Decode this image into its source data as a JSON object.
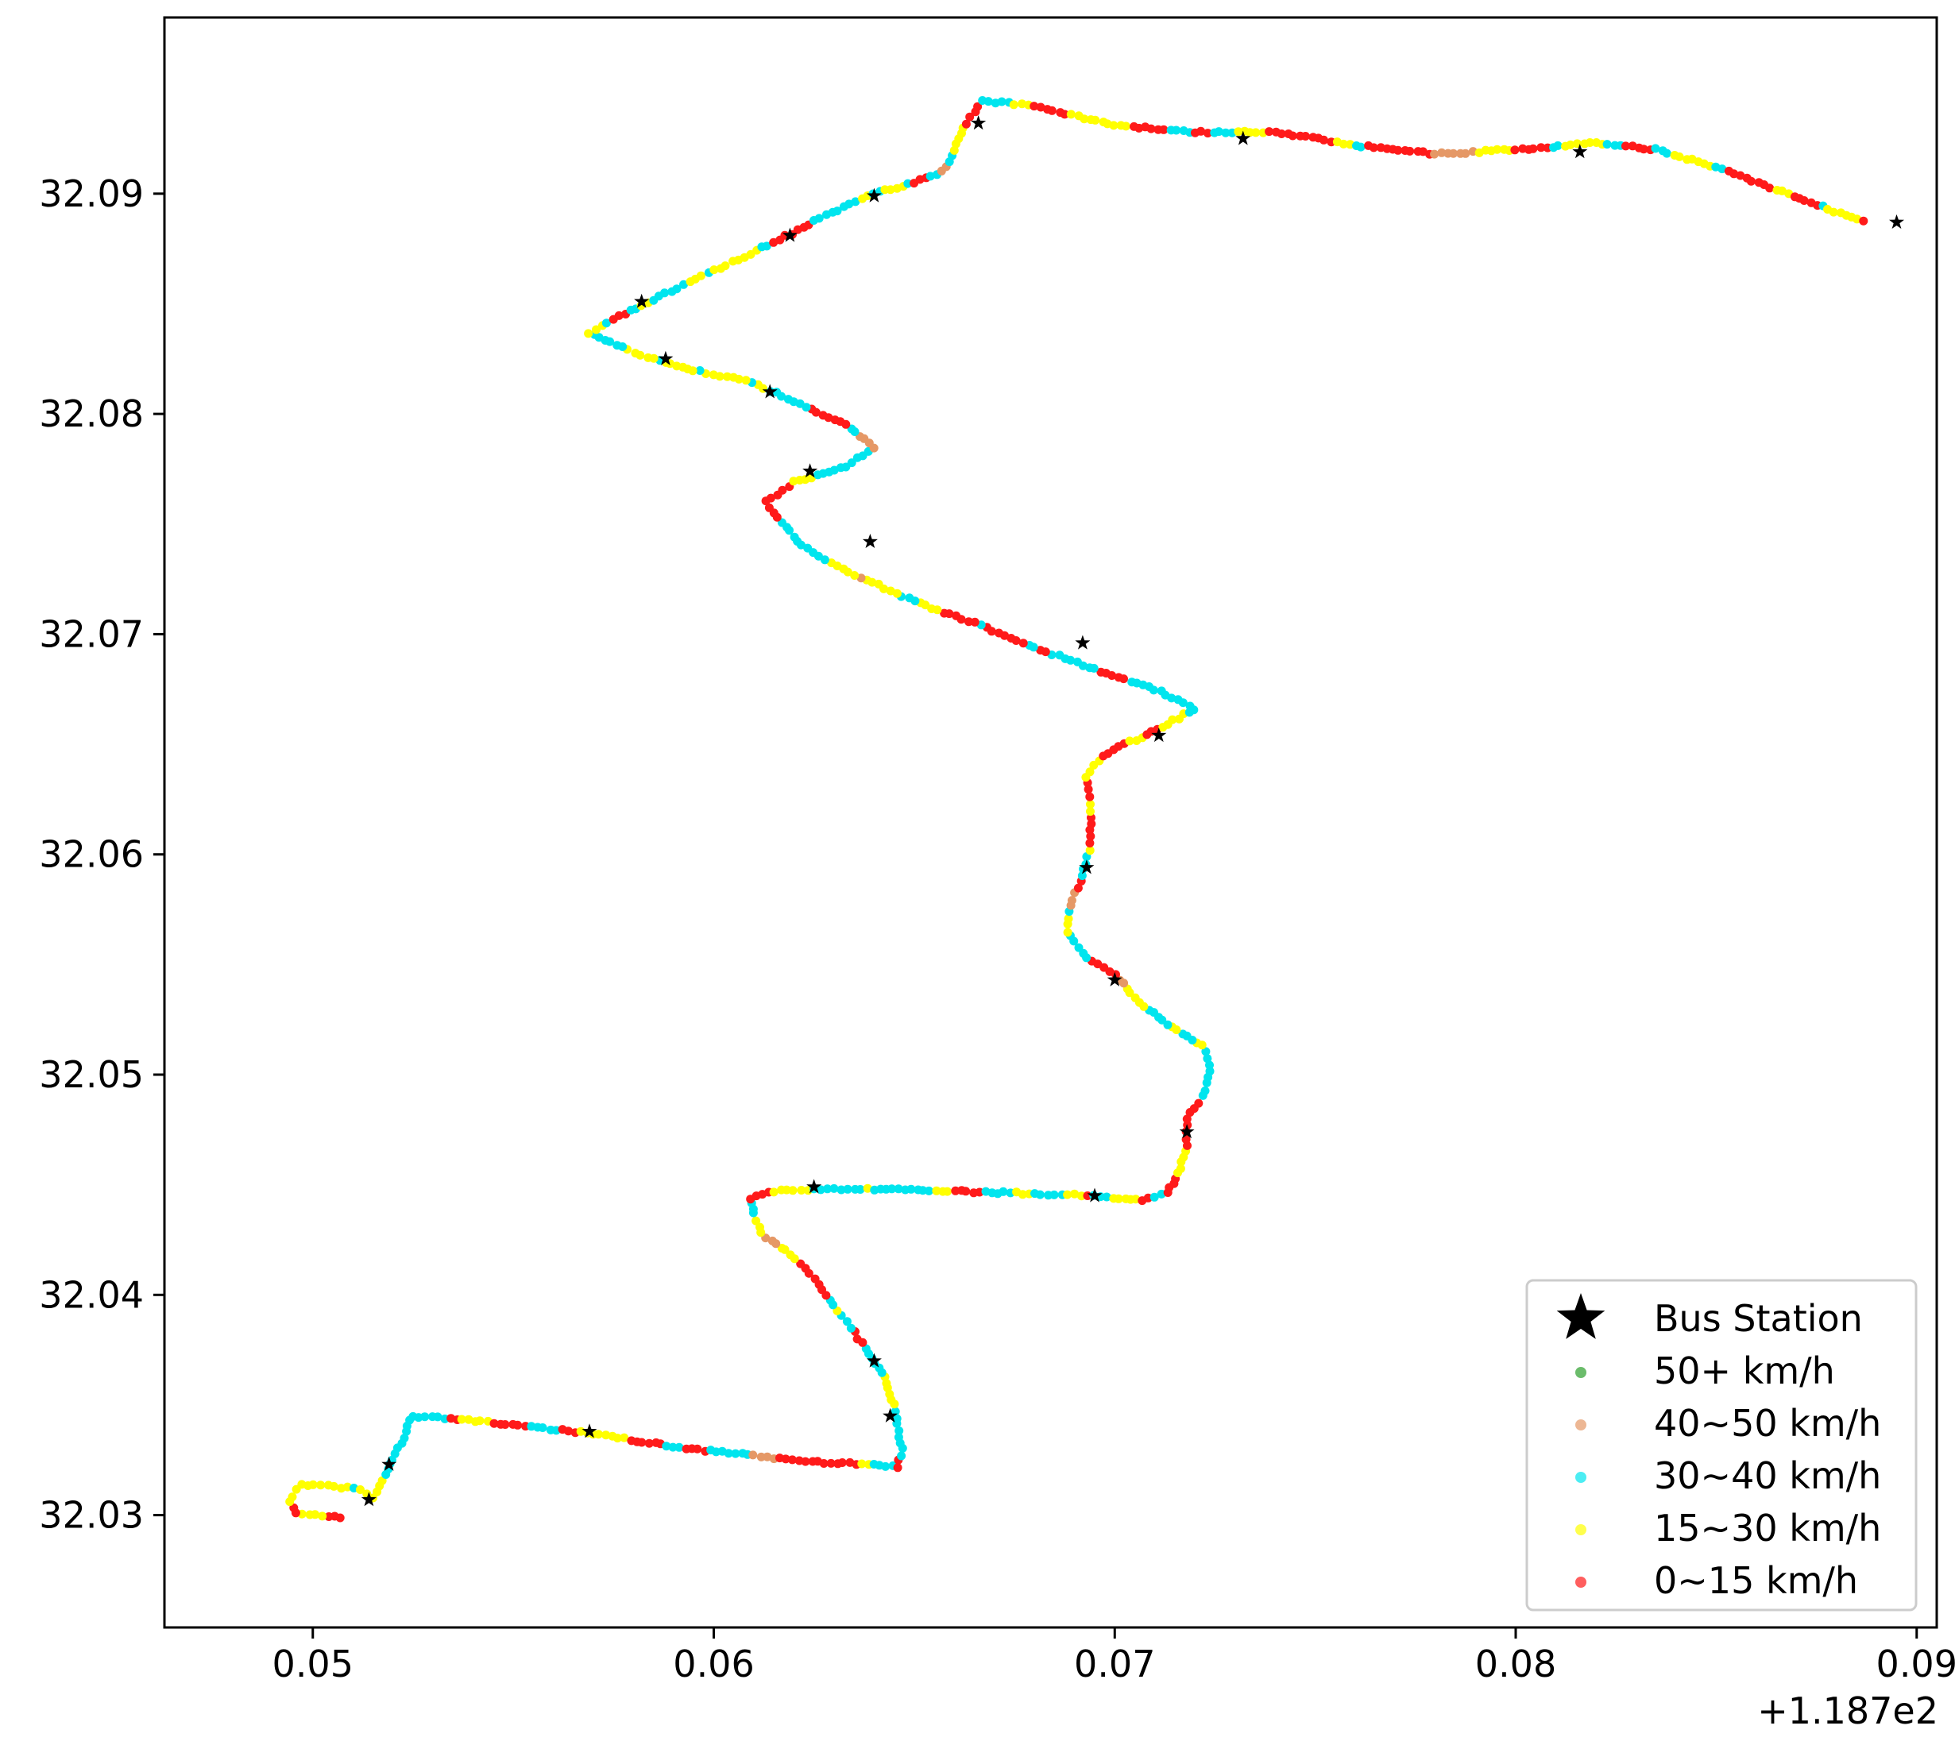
{
  "chart_data": {
    "type": "scatter",
    "title": "",
    "xlabel": "",
    "ylabel": "",
    "x_offset_label": "+1.187e2",
    "xlim": [
      0.0463,
      0.0905
    ],
    "ylim": [
      32.0249,
      32.098
    ],
    "x_ticks": [
      {
        "value": 0.05,
        "label": "0.05"
      },
      {
        "value": 0.06,
        "label": "0.06"
      },
      {
        "value": 0.07,
        "label": "0.07"
      },
      {
        "value": 0.08,
        "label": "0.08"
      },
      {
        "value": 0.09,
        "label": "0.09"
      }
    ],
    "y_ticks": [
      {
        "value": 32.03,
        "label": "32.03"
      },
      {
        "value": 32.04,
        "label": "32.04"
      },
      {
        "value": 32.05,
        "label": "32.05"
      },
      {
        "value": 32.06,
        "label": "32.06"
      },
      {
        "value": 32.07,
        "label": "32.07"
      },
      {
        "value": 32.08,
        "label": "32.08"
      },
      {
        "value": 32.09,
        "label": "32.09"
      }
    ],
    "grid": false,
    "legend_position": "lower-right",
    "route": [
      [
        0.0507,
        32.0299
      ],
      [
        0.0496,
        32.0301
      ],
      [
        0.0494,
        32.0306
      ],
      [
        0.0497,
        32.0314
      ],
      [
        0.0512,
        32.0312
      ],
      [
        0.0515,
        32.0308
      ],
      [
        0.0518,
        32.0318
      ],
      [
        0.0522,
        32.0333
      ],
      [
        0.0525,
        32.0345
      ],
      [
        0.0545,
        32.0342
      ],
      [
        0.057,
        32.0337
      ],
      [
        0.059,
        32.0331
      ],
      [
        0.061,
        32.0327
      ],
      [
        0.0626,
        32.0324
      ],
      [
        0.064,
        32.0323
      ],
      [
        0.0646,
        32.0322
      ],
      [
        0.0647,
        32.033
      ],
      [
        0.0645,
        32.035
      ],
      [
        0.0642,
        32.0365
      ],
      [
        0.0637,
        32.0378
      ],
      [
        0.063,
        32.0395
      ],
      [
        0.0624,
        32.041
      ],
      [
        0.0618,
        32.042
      ],
      [
        0.0612,
        32.0428
      ],
      [
        0.061,
        32.0437
      ],
      [
        0.0609,
        32.0444
      ],
      [
        0.0615,
        32.0447
      ],
      [
        0.0625,
        32.0448
      ],
      [
        0.064,
        32.0448
      ],
      [
        0.066,
        32.0447
      ],
      [
        0.068,
        32.0446
      ],
      [
        0.0695,
        32.0445
      ],
      [
        0.0707,
        32.0443
      ],
      [
        0.0713,
        32.0446
      ],
      [
        0.0716,
        32.0455
      ],
      [
        0.0718,
        32.0468
      ],
      [
        0.0718,
        32.048
      ],
      [
        0.0722,
        32.049
      ],
      [
        0.0724,
        32.0502
      ],
      [
        0.0722,
        32.0513
      ],
      [
        0.0713,
        32.0523
      ],
      [
        0.0706,
        32.0533
      ],
      [
        0.07,
        32.0545
      ],
      [
        0.0693,
        32.0553
      ],
      [
        0.0688,
        32.0565
      ],
      [
        0.0689,
        32.0577
      ],
      [
        0.0692,
        32.059
      ],
      [
        0.0694,
        32.0605
      ],
      [
        0.0694,
        32.062
      ],
      [
        0.0693,
        32.0635
      ],
      [
        0.0697,
        32.0645
      ],
      [
        0.0704,
        32.0651
      ],
      [
        0.0712,
        32.0658
      ],
      [
        0.072,
        32.0666
      ],
      [
        0.071,
        32.0675
      ],
      [
        0.0695,
        32.0684
      ],
      [
        0.068,
        32.0694
      ],
      [
        0.0665,
        32.0705
      ],
      [
        0.065,
        32.0715
      ],
      [
        0.0635,
        32.0727
      ],
      [
        0.0622,
        32.074
      ],
      [
        0.0613,
        32.076
      ],
      [
        0.062,
        32.0769
      ],
      [
        0.0633,
        32.0776
      ],
      [
        0.064,
        32.0785
      ],
      [
        0.0633,
        32.0795
      ],
      [
        0.062,
        32.0806
      ],
      [
        0.0608,
        32.0815
      ],
      [
        0.0595,
        32.082
      ],
      [
        0.0585,
        32.0825
      ],
      [
        0.0577,
        32.083
      ],
      [
        0.0569,
        32.0837
      ],
      [
        0.0575,
        32.0843
      ],
      [
        0.0585,
        32.0852
      ],
      [
        0.06,
        32.0865
      ],
      [
        0.0615,
        32.0878
      ],
      [
        0.0628,
        32.089
      ],
      [
        0.064,
        32.09
      ],
      [
        0.065,
        32.0905
      ],
      [
        0.0657,
        32.091
      ],
      [
        0.066,
        32.092
      ],
      [
        0.0663,
        32.0932
      ],
      [
        0.0667,
        32.0942
      ],
      [
        0.068,
        32.094
      ],
      [
        0.07,
        32.0931
      ],
      [
        0.072,
        32.0928
      ],
      [
        0.074,
        32.0928
      ],
      [
        0.076,
        32.0922
      ],
      [
        0.078,
        32.0918
      ],
      [
        0.08,
        32.092
      ],
      [
        0.082,
        32.0923
      ],
      [
        0.0835,
        32.092
      ],
      [
        0.085,
        32.0912
      ],
      [
        0.0865,
        32.0902
      ],
      [
        0.0878,
        32.0893
      ],
      [
        0.0888,
        32.0887
      ]
    ],
    "stations": [
      [
        0.0514,
        32.0307
      ],
      [
        0.0519,
        32.0323
      ],
      [
        0.0569,
        32.0338
      ],
      [
        0.0644,
        32.0345
      ],
      [
        0.064,
        32.037
      ],
      [
        0.0625,
        32.0449
      ],
      [
        0.0695,
        32.0445
      ],
      [
        0.0718,
        32.0474
      ],
      [
        0.07,
        32.0543
      ],
      [
        0.0693,
        32.0594
      ],
      [
        0.0711,
        32.0654
      ],
      [
        0.0692,
        32.0696
      ],
      [
        0.0639,
        32.0742
      ],
      [
        0.0624,
        32.0774
      ],
      [
        0.0614,
        32.081
      ],
      [
        0.0588,
        32.0825
      ],
      [
        0.0582,
        32.0851
      ],
      [
        0.0619,
        32.0881
      ],
      [
        0.064,
        32.0899
      ],
      [
        0.0666,
        32.0932
      ],
      [
        0.0732,
        32.0925
      ],
      [
        0.0816,
        32.0919
      ],
      [
        0.0895,
        32.0887
      ]
    ],
    "speed_classes": [
      {
        "label": "50+ km/h",
        "color": "#2ca02c"
      },
      {
        "label": "40~50 km/h",
        "color": "#e59866"
      },
      {
        "label": "30~40 km/h",
        "color": "#00e5ee"
      },
      {
        "label": "15~30 km/h",
        "color": "#ffff00"
      },
      {
        "label": "0~15 km/h",
        "color": "#ff1a1a"
      }
    ],
    "legend": [
      {
        "label": "Bus Station",
        "marker": "star",
        "color": "#000000"
      },
      {
        "label": "50+ km/h",
        "marker": "dot",
        "color": "#2ca02c"
      },
      {
        "label": "40~50 km/h",
        "marker": "dot",
        "color": "#e59866"
      },
      {
        "label": "30~40 km/h",
        "marker": "dot",
        "color": "#00e5ee"
      },
      {
        "label": "15~30 km/h",
        "marker": "dot",
        "color": "#ffff00"
      },
      {
        "label": "0~15 km/h",
        "marker": "dot",
        "color": "#ff1a1a"
      }
    ]
  }
}
